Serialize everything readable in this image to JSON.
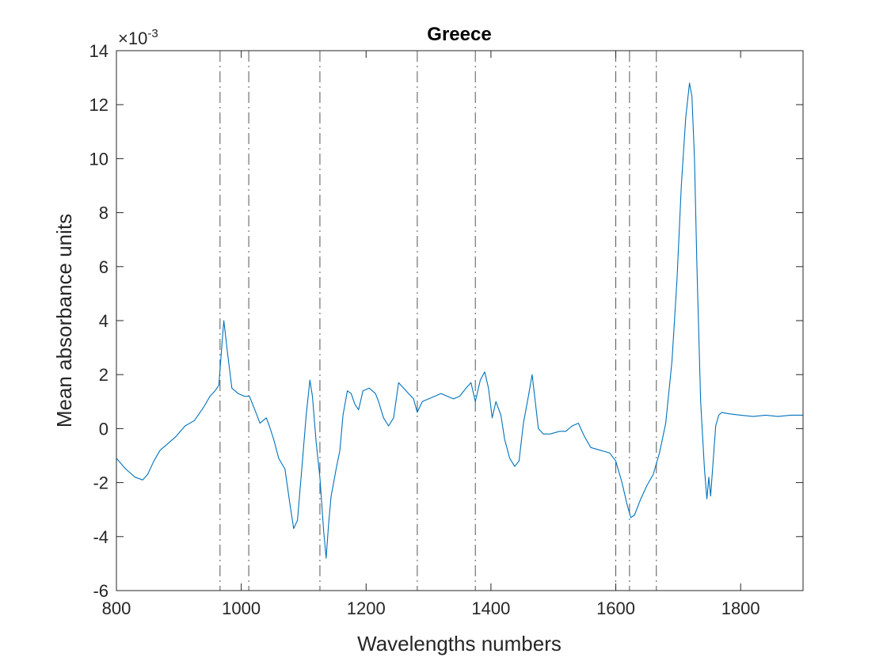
{
  "chart_data": {
    "type": "line",
    "title": "Greece",
    "xlabel": "Wavelengths numbers",
    "ylabel": "Mean absorbance units",
    "xlim": [
      800,
      1900
    ],
    "ylim": [
      -6,
      14
    ],
    "y_exponent_base": "×10",
    "y_exponent_power": "-3",
    "x_ticks": [
      800,
      1000,
      1200,
      1400,
      1600,
      1800
    ],
    "x_tick_labels": [
      "800",
      "1000",
      "1200",
      "1400",
      "1600",
      "1800"
    ],
    "y_ticks": [
      -6,
      -4,
      -2,
      0,
      2,
      4,
      6,
      8,
      10,
      12,
      14
    ],
    "y_tick_labels": [
      "-6",
      "-4",
      "-2",
      "0",
      "2",
      "4",
      "6",
      "8",
      "10",
      "12",
      "14"
    ],
    "grid": false,
    "line_color": "#0072BD",
    "vline_color": "#555555",
    "vlines": [
      966,
      1012,
      1126,
      1282,
      1375,
      1600,
      1622,
      1665
    ],
    "series": [
      {
        "x": [
          800,
          815,
          830,
          842,
          850,
          860,
          870,
          880,
          895,
          910,
          925,
          940,
          950,
          958,
          964,
          968,
          972,
          978,
          985,
          995,
          1005,
          1013,
          1020,
          1030,
          1040,
          1045,
          1052,
          1060,
          1070,
          1078,
          1084,
          1090,
          1098,
          1104,
          1110,
          1114,
          1120,
          1126,
          1132,
          1136,
          1140,
          1144,
          1148,
          1152,
          1158,
          1163,
          1170,
          1176,
          1182,
          1188,
          1195,
          1205,
          1215,
          1220,
          1228,
          1236,
          1244,
          1252,
          1260,
          1268,
          1276,
          1282,
          1290,
          1300,
          1310,
          1320,
          1330,
          1340,
          1350,
          1360,
          1368,
          1375,
          1383,
          1390,
          1396,
          1402,
          1408,
          1416,
          1422,
          1430,
          1438,
          1445,
          1452,
          1460,
          1466,
          1470,
          1476,
          1484,
          1495,
          1510,
          1520,
          1530,
          1540,
          1550,
          1560,
          1575,
          1590,
          1600,
          1610,
          1618,
          1624,
          1630,
          1640,
          1650,
          1660,
          1670,
          1680,
          1690,
          1698,
          1705,
          1712,
          1718,
          1722,
          1726,
          1730,
          1736,
          1742,
          1746,
          1749,
          1752,
          1756,
          1760,
          1765,
          1770,
          1780,
          1800,
          1820,
          1840,
          1860,
          1880,
          1900
        ],
        "y": [
          -1.1,
          -1.5,
          -1.8,
          -1.9,
          -1.7,
          -1.2,
          -0.8,
          -0.6,
          -0.3,
          0.1,
          0.3,
          0.8,
          1.2,
          1.4,
          1.6,
          2.8,
          4.0,
          2.8,
          1.5,
          1.3,
          1.2,
          1.2,
          0.8,
          0.2,
          0.4,
          0.1,
          -0.4,
          -1.1,
          -1.5,
          -2.8,
          -3.7,
          -3.4,
          -1.2,
          0.5,
          1.8,
          1.2,
          -0.5,
          -1.8,
          -3.8,
          -4.8,
          -3.5,
          -2.5,
          -2.0,
          -1.5,
          -0.8,
          0.5,
          1.4,
          1.3,
          0.9,
          0.7,
          1.4,
          1.5,
          1.3,
          1.0,
          0.4,
          0.1,
          0.4,
          1.7,
          1.5,
          1.3,
          1.1,
          0.6,
          1.0,
          1.1,
          1.2,
          1.3,
          1.2,
          1.1,
          1.2,
          1.5,
          1.7,
          1.0,
          1.8,
          2.1,
          1.5,
          0.4,
          1.0,
          0.5,
          -0.4,
          -1.1,
          -1.4,
          -1.2,
          0.2,
          1.2,
          2.0,
          1.2,
          0.0,
          -0.2,
          -0.2,
          -0.1,
          -0.1,
          0.1,
          0.2,
          -0.3,
          -0.7,
          -0.8,
          -0.9,
          -1.2,
          -2.0,
          -2.8,
          -3.3,
          -3.2,
          -2.6,
          -2.1,
          -1.7,
          -0.9,
          0.2,
          2.5,
          5.5,
          9.0,
          11.5,
          12.8,
          12.3,
          10.0,
          6.0,
          1.0,
          -1.5,
          -2.6,
          -1.8,
          -2.5,
          -1.2,
          0.1,
          0.5,
          0.6,
          0.55,
          0.5,
          0.45,
          0.5,
          0.45,
          0.5,
          0.5
        ]
      }
    ]
  }
}
